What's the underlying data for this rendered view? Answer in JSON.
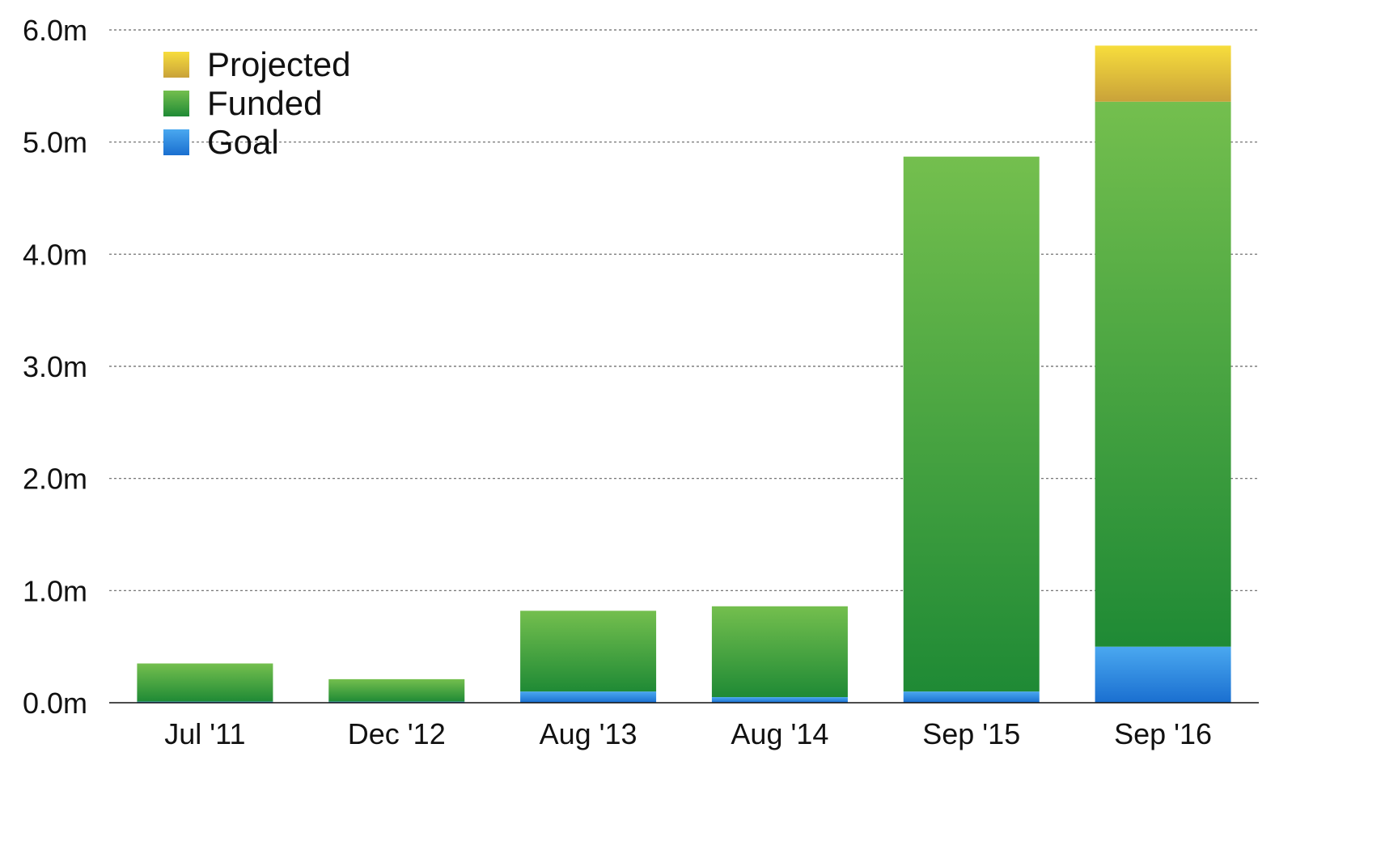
{
  "chart_data": {
    "type": "bar",
    "stacked": true,
    "title": "",
    "xlabel": "",
    "ylabel": "",
    "ylim": [
      0,
      6.0
    ],
    "yticks": [
      "0.0m",
      "1.0m",
      "2.0m",
      "3.0m",
      "4.0m",
      "5.0m",
      "6.0m"
    ],
    "ytick_values": [
      0,
      1,
      2,
      3,
      4,
      5,
      6
    ],
    "grid": true,
    "legend_position": "top-left",
    "categories": [
      "Jul '11",
      "Dec '12",
      "Aug '13",
      "Aug '14",
      "Sep '15",
      "Sep '16"
    ],
    "series": [
      {
        "name": "Goal",
        "values": [
          0.01,
          0.01,
          0.1,
          0.05,
          0.1,
          0.5
        ],
        "color_top": "#4aa8f0",
        "color_bottom": "#1a6fd0",
        "color": "#2f8ae6"
      },
      {
        "name": "Funded",
        "values": [
          0.34,
          0.2,
          0.72,
          0.81,
          4.77,
          4.86
        ],
        "color_top": "#74bf4e",
        "color_bottom": "#1f8a35",
        "color": "#3ba243"
      },
      {
        "name": "Projected",
        "values": [
          0,
          0,
          0,
          0,
          0,
          0.5
        ],
        "color_top": "#f7dd3c",
        "color_bottom": "#c9a23a",
        "color": "#e8c43c"
      }
    ],
    "legend_order": [
      "Projected",
      "Funded",
      "Goal"
    ]
  }
}
